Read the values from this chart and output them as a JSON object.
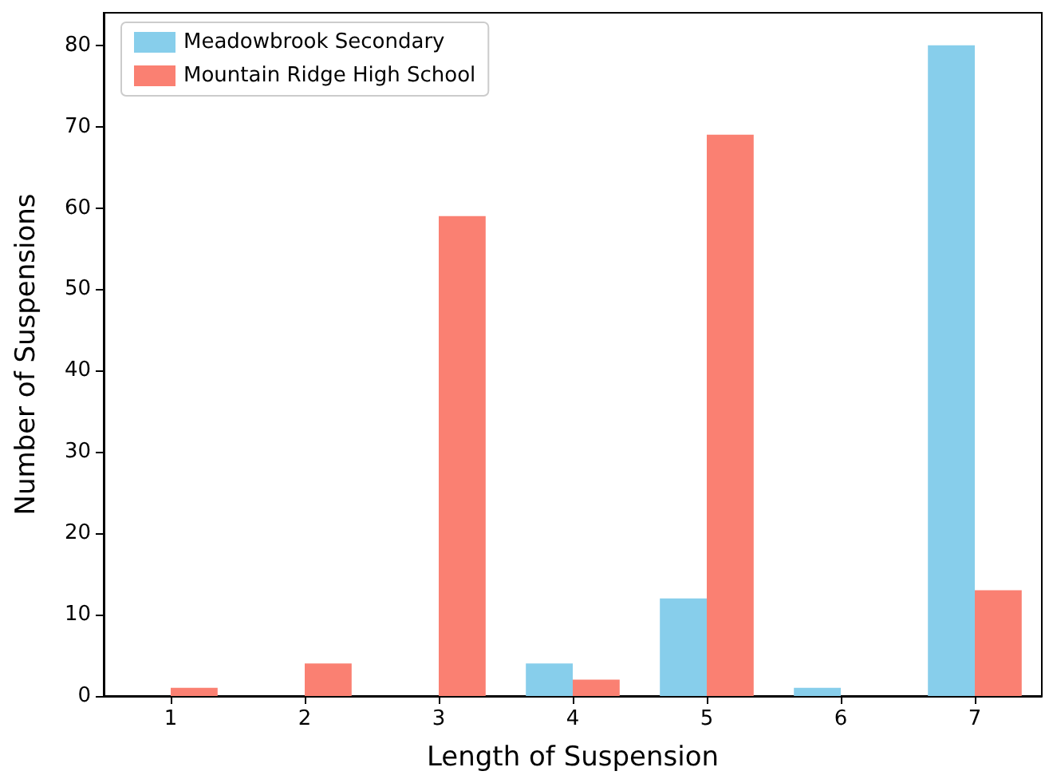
{
  "chart_data": {
    "type": "bar",
    "xlabel": "Length of Suspension",
    "ylabel": "Number of Suspensions",
    "categories": [
      "1",
      "2",
      "3",
      "4",
      "5",
      "6",
      "7"
    ],
    "series": [
      {
        "name": "Meadowbrook Secondary",
        "color": "#87ceeb",
        "values": [
          0,
          0,
          0,
          4,
          12,
          1,
          80
        ]
      },
      {
        "name": "Mountain Ridge High School",
        "color": "#fa8072",
        "values": [
          1,
          4,
          59,
          2,
          69,
          0,
          13
        ]
      }
    ],
    "ylim": [
      0,
      84
    ],
    "yticks": [
      0,
      10,
      20,
      30,
      40,
      50,
      60,
      70,
      80
    ],
    "grid": false,
    "legend": "top left"
  }
}
